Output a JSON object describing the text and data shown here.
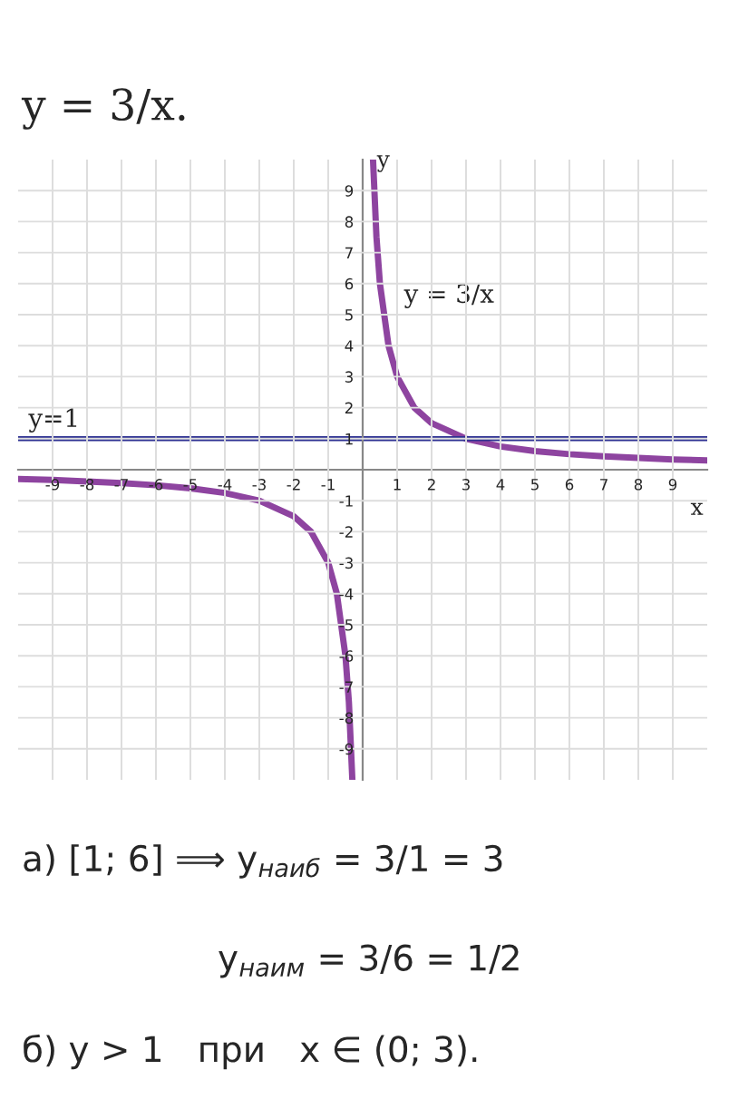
{
  "chart_data": {
    "type": "line",
    "title": "y = 3/x.",
    "xlabel": "x",
    "ylabel": "y",
    "xlim": [
      -10,
      10
    ],
    "ylim": [
      -10,
      10
    ],
    "xticks": [
      -9,
      -8,
      -7,
      -6,
      -5,
      -4,
      -3,
      -2,
      -1,
      1,
      2,
      3,
      4,
      5,
      6,
      7,
      8,
      9
    ],
    "yticks": [
      -9,
      -8,
      -7,
      -6,
      -5,
      -4,
      -3,
      -2,
      -1,
      1,
      2,
      3,
      4,
      5,
      6,
      7,
      8,
      9
    ],
    "grid": true,
    "marker": "none",
    "line_style": "solid",
    "series": [
      {
        "color": "#8e44a0",
        "x": [
          -10,
          -9,
          -8,
          -7,
          -6,
          -5,
          -4,
          -3,
          -2,
          -1.5,
          -1,
          -0.75,
          -0.5,
          -0.4,
          -0.3
        ],
        "values": [
          -0.3,
          -0.33,
          -0.38,
          -0.43,
          -0.5,
          -0.6,
          -0.75,
          -1,
          -1.5,
          -2,
          -3,
          -4,
          -6,
          -7.5,
          -10
        ]
      },
      {
        "color": "#8e44a0",
        "x": [
          0.3,
          0.4,
          0.5,
          0.75,
          1,
          1.5,
          2,
          3,
          4,
          5,
          6,
          7,
          8,
          9,
          10
        ],
        "values": [
          10,
          7.5,
          6,
          4,
          3,
          2,
          1.5,
          1,
          0.75,
          0.6,
          0.5,
          0.43,
          0.38,
          0.33,
          0.3
        ]
      }
    ],
    "ref_lines": [
      {
        "axis": "y",
        "value": 1,
        "label": "y=1",
        "color": "#2e3192"
      }
    ],
    "annotations": [
      "y = 3/x",
      "а) [1; 6] ⟹ y$_{наиб}$ = 3/1 = 3",
      "y$_{наим}$ = 3/6 = 1/2",
      "б) y > 1   при   x ∈ (0; 3)."
    ]
  }
}
